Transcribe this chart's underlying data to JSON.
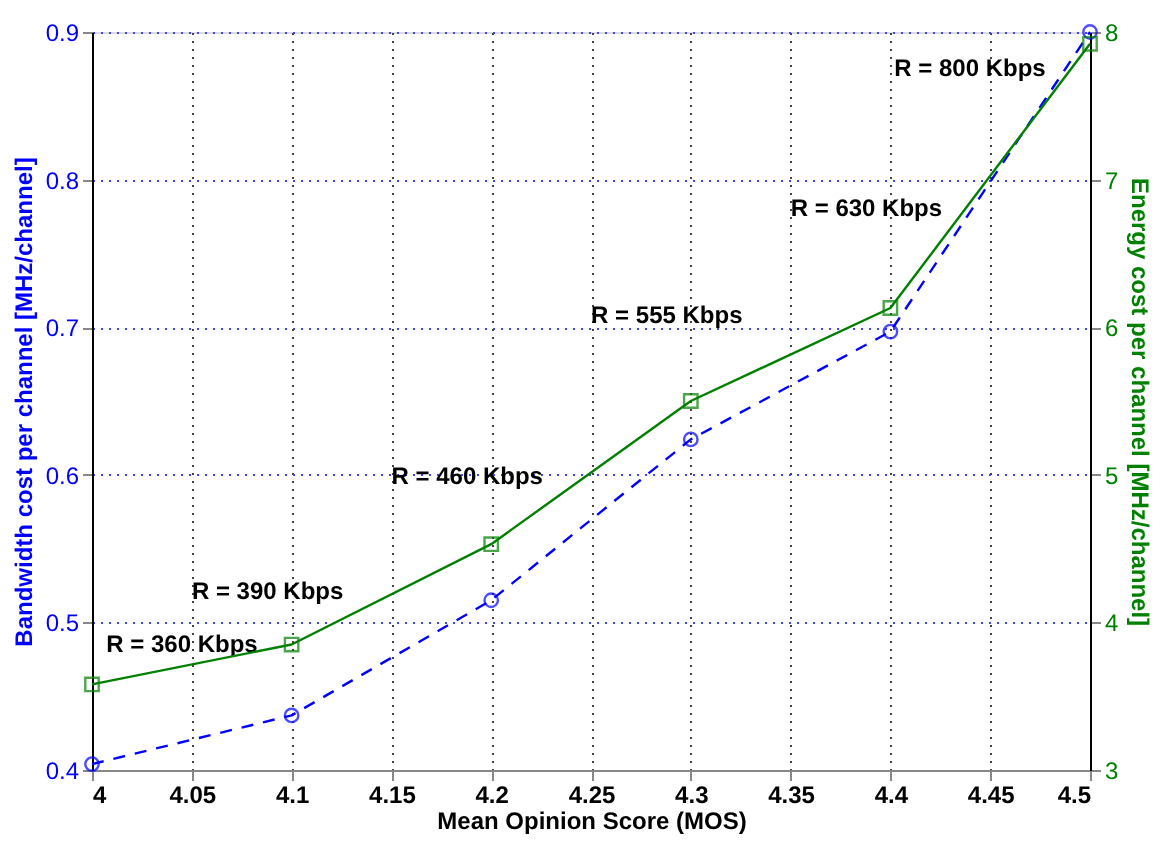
{
  "chart_data": {
    "type": "line",
    "xlabel": "Mean Opinion Score (MOS)",
    "ylabel": "Bandwidth cost per channel [MHz/channel]",
    "y2label": "Energy cost per channel [MHz/channel]",
    "x": [
      4.0,
      4.1,
      4.2,
      4.3,
      4.4,
      4.5
    ],
    "series": [
      {
        "color": "#0000ff",
        "values": [
          0.404,
          0.437,
          0.515,
          0.624,
          0.697,
          0.9
        ],
        "marker": "circle",
        "line_style": "dashed"
      },
      {
        "color": "#008000",
        "values": [
          3.58,
          3.85,
          4.53,
          5.5,
          6.13,
          7.92
        ],
        "marker": "square",
        "line_style": "solid",
        "axis": "y2"
      }
    ],
    "xlim": [
      4.0,
      4.5
    ],
    "xticks": [
      4,
      4.05,
      4.1,
      4.15,
      4.2,
      4.25,
      4.3,
      4.35,
      4.4,
      4.45,
      4.5
    ],
    "ylim": [
      0.4,
      0.9
    ],
    "yticks": [
      0.4,
      0.5,
      0.6,
      0.7,
      0.8,
      0.9
    ],
    "y2lim": [
      3,
      8
    ],
    "y2ticks": [
      3,
      4,
      5,
      6,
      7,
      8
    ],
    "grid": true,
    "annotations": [
      "R = 360 Kbps",
      "R = 390 Kbps",
      "R = 460 Kbps",
      "R = 555 Kbps",
      "R = 630 Kbps",
      "R = 800 Kbps"
    ]
  }
}
